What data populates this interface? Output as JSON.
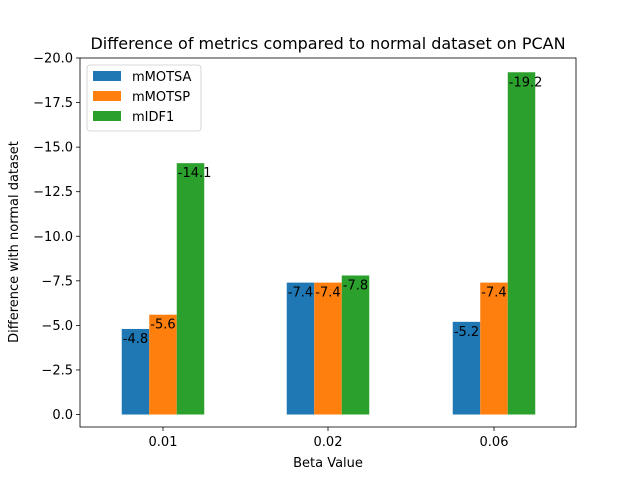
{
  "chart_data": {
    "type": "bar",
    "title": "Difference of metrics compared to normal dataset on PCAN",
    "xlabel": "Beta Value",
    "ylabel": "Difference with normal dataset",
    "categories": [
      "0.01",
      "0.02",
      "0.06"
    ],
    "series": [
      {
        "name": "mMOTSA",
        "values": [
          -4.8,
          -7.4,
          -5.2
        ],
        "color": "#1f77b4"
      },
      {
        "name": "mMOTSP",
        "values": [
          -5.6,
          -7.4,
          -7.4
        ],
        "color": "#ff7f0e"
      },
      {
        "name": "mIDF1",
        "values": [
          -14.1,
          -7.8,
          -19.2
        ],
        "color": "#2ca02c"
      }
    ],
    "ylim": [
      0.7,
      -20.0
    ],
    "yticks": [
      0.0,
      -2.5,
      -5.0,
      -7.5,
      -10.0,
      -12.5,
      -15.0,
      -17.5,
      -20.0
    ],
    "ytick_labels": [
      "0.0",
      "−2.5",
      "−5.0",
      "−7.5",
      "−10.0",
      "−12.5",
      "−15.0",
      "−17.5",
      "−20.0"
    ],
    "y_axis_inverted": true,
    "grid": false,
    "legend_position": "top-left"
  }
}
